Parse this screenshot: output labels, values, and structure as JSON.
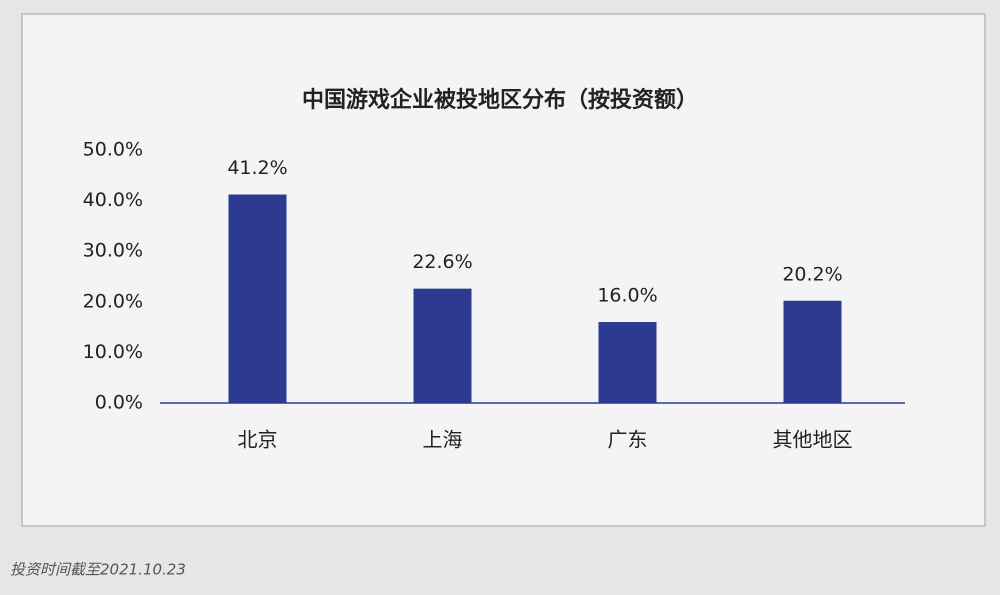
{
  "chart_data": {
    "type": "bar",
    "title": "中国游戏企业被投地区分布（按投资额）",
    "categories": [
      "北京",
      "上海",
      "广东",
      "其他地区"
    ],
    "values": [
      41.2,
      22.6,
      16.0,
      20.2
    ],
    "value_labels": [
      "41.2%",
      "22.6%",
      "16.0%",
      "20.2%"
    ],
    "color": "#2c3a8f",
    "ylim": [
      0,
      50
    ],
    "yticks": [
      {
        "value": 0,
        "label": "0.0%"
      },
      {
        "value": 10,
        "label": "10.0%"
      },
      {
        "value": 20,
        "label": "20.0%"
      },
      {
        "value": 30,
        "label": "30.0%"
      },
      {
        "value": 40,
        "label": "40.0%"
      },
      {
        "value": 50,
        "label": "50.0%"
      }
    ],
    "grid": false,
    "note": "投资时间截至2021.10.23"
  }
}
